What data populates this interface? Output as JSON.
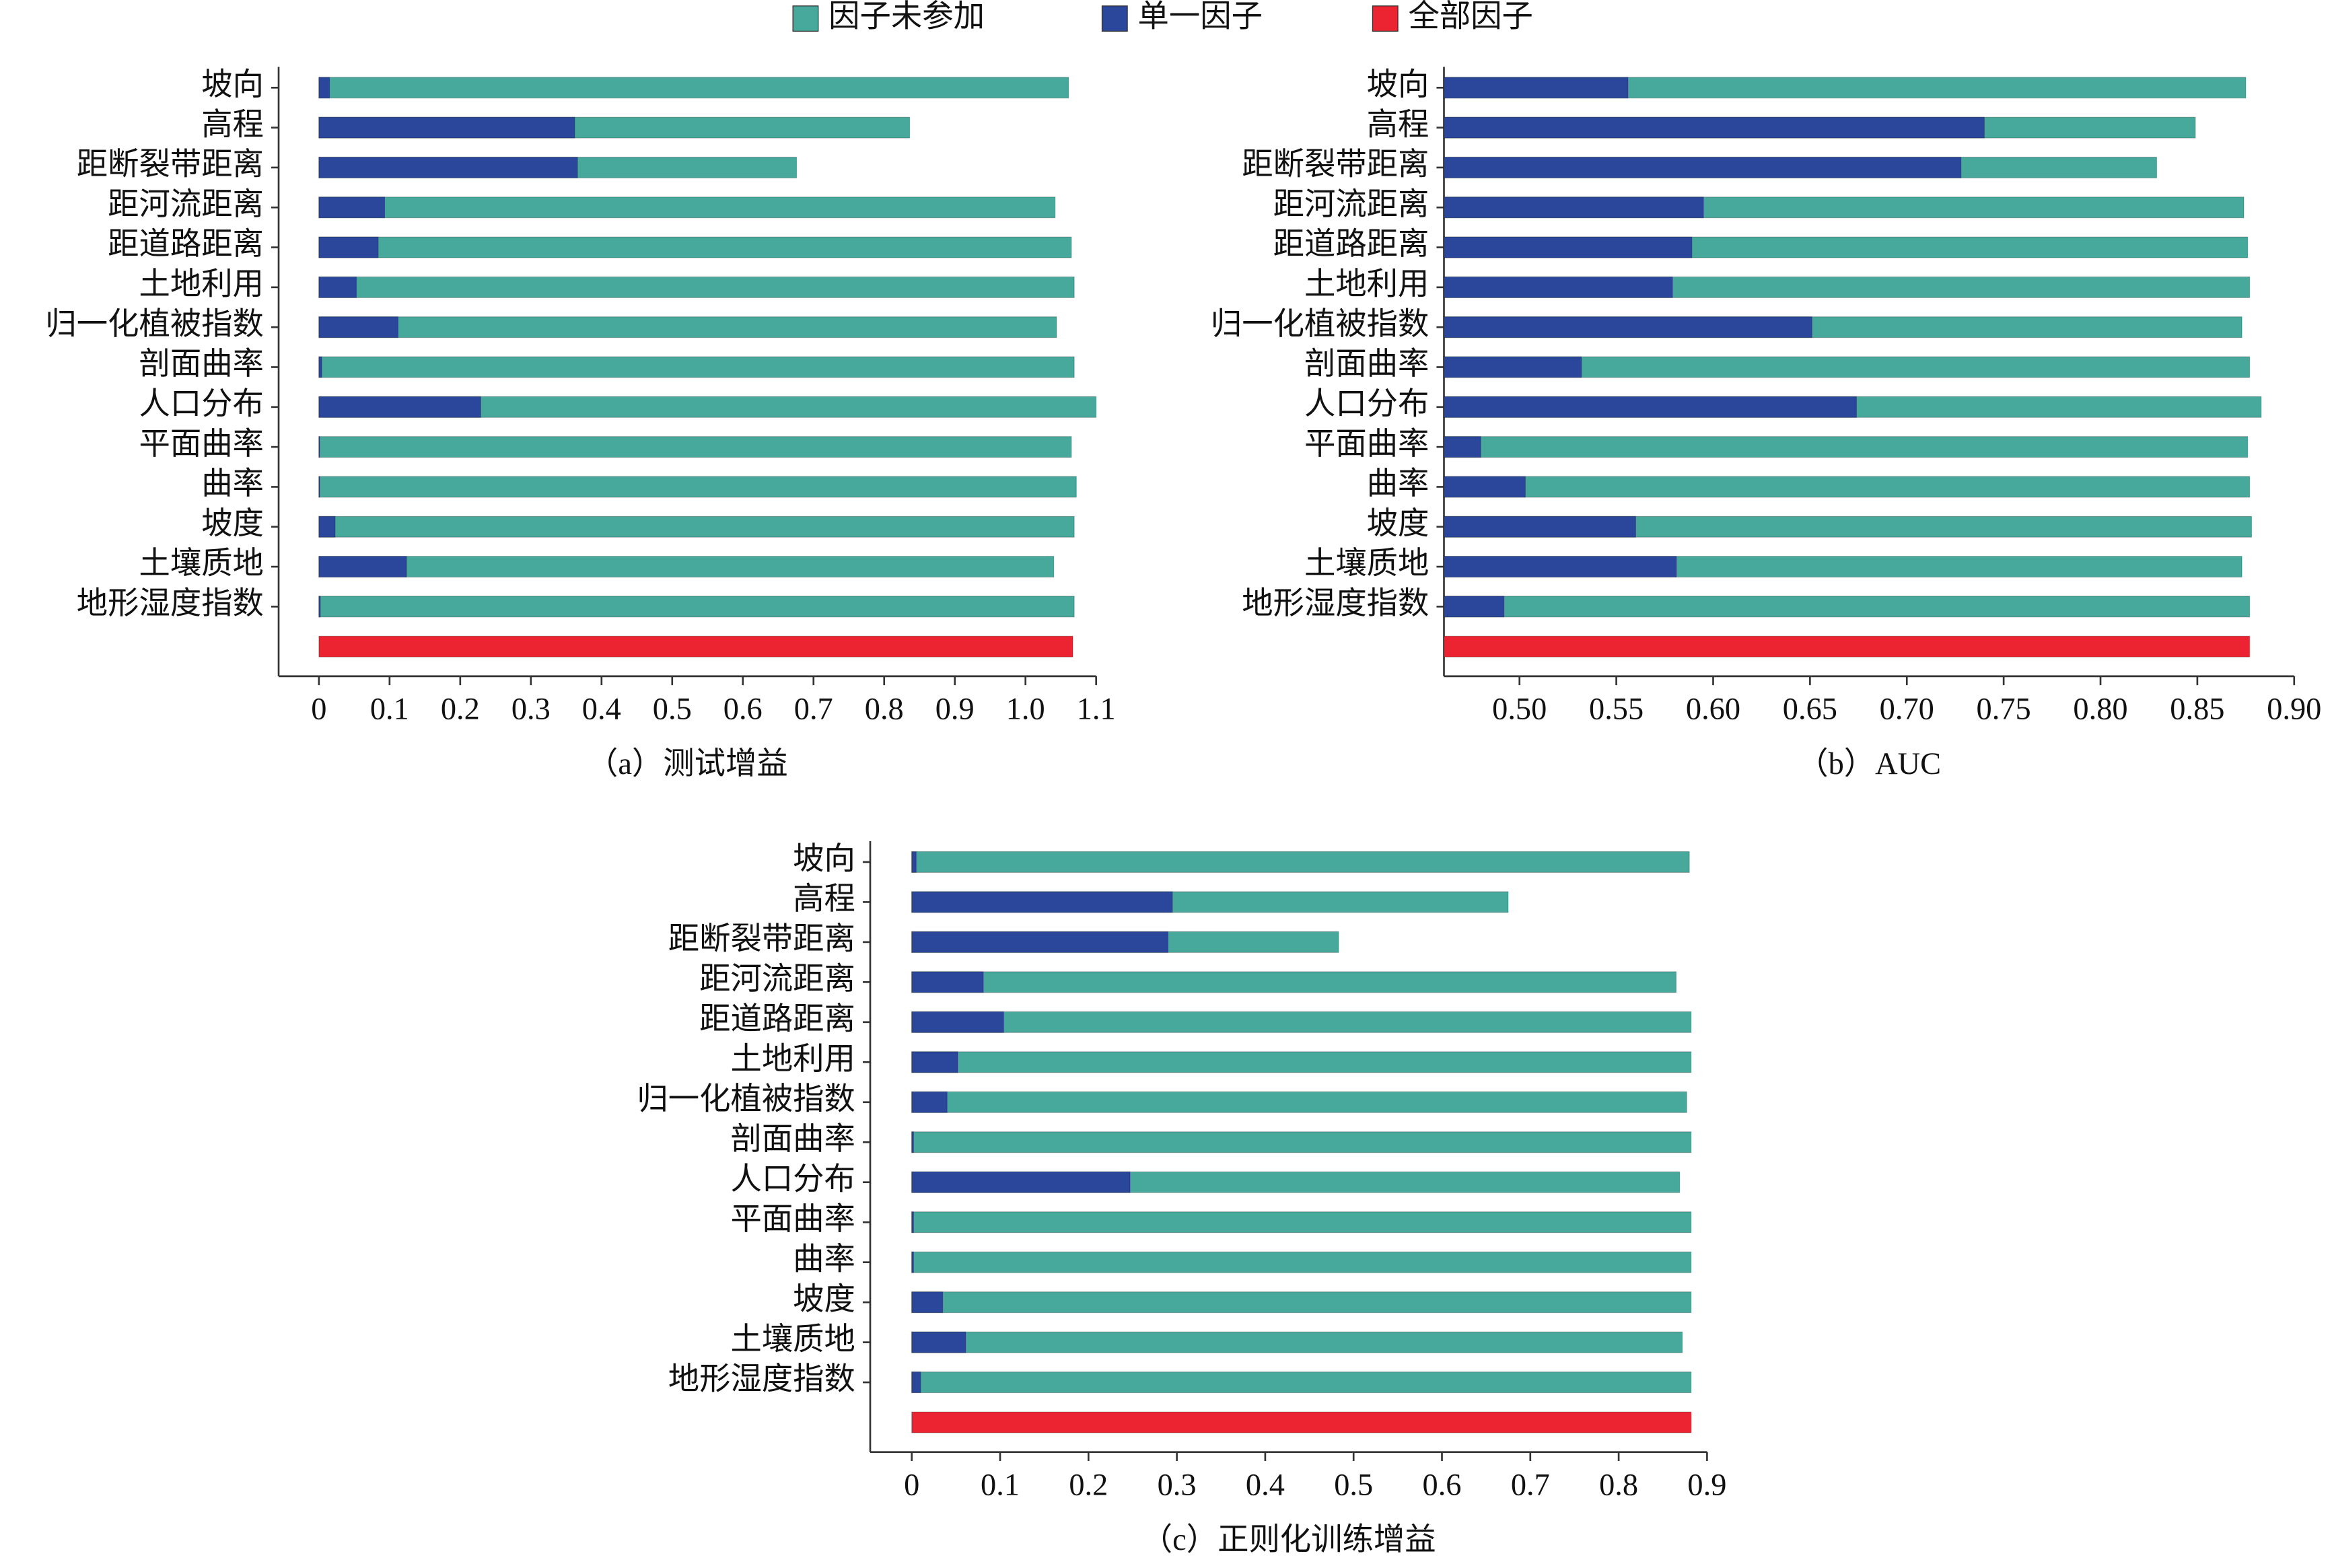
{
  "chart_data": [
    {
      "type": "bar",
      "orientation": "horizontal",
      "title": "（a）测试增益",
      "categories": [
        "坡向",
        "高程",
        "距断裂带距离",
        "距河流距离",
        "距道路距离",
        "土地利用",
        "归一化植被指数",
        "剖面曲率",
        "人口分布",
        "平面曲率",
        "曲率",
        "坡度",
        "土壤质地",
        "地形湿度指数",
        null
      ],
      "series": [
        {
          "name": "因子未参加",
          "color": "#46a99b",
          "values": [
            1.061,
            0.836,
            0.676,
            1.042,
            1.065,
            1.069,
            1.044,
            1.069,
            1.1,
            1.065,
            1.072,
            1.069,
            1.04,
            1.069,
            null
          ]
        },
        {
          "name": "单一因子",
          "color": "#2b479b",
          "values": [
            0.015,
            0.362,
            0.366,
            0.093,
            0.084,
            0.053,
            0.112,
            0.004,
            0.229,
            0.001,
            0.001,
            0.023,
            0.124,
            0.002,
            null
          ]
        },
        {
          "name": "全部因子",
          "color": "#ec2431",
          "values": [
            null,
            null,
            null,
            null,
            null,
            null,
            null,
            null,
            null,
            null,
            null,
            null,
            null,
            null,
            1.067
          ]
        }
      ],
      "xlim": [
        -0.057,
        1.1
      ],
      "xticks": [
        0,
        0.1,
        0.2,
        0.3,
        0.4,
        0.5,
        0.6,
        0.7,
        0.8,
        0.9,
        {
          "value": 1,
          "label": "1.0"
        },
        1.1
      ]
    },
    {
      "type": "bar",
      "orientation": "horizontal",
      "title": "（b）AUC",
      "categories": [
        "坡向",
        "高程",
        "距断裂带距离",
        "距河流距离",
        "距道路距离",
        "土地利用",
        "归一化植被指数",
        "剖面曲率",
        "人口分布",
        "平面曲率",
        "曲率",
        "坡度",
        "土壤质地",
        "地形湿度指数",
        null
      ],
      "series": [
        {
          "color": "#46a99b",
          "values": [
            0.875,
            0.849,
            0.829,
            0.874,
            0.876,
            0.877,
            0.873,
            0.877,
            0.883,
            0.876,
            0.877,
            0.878,
            0.873,
            0.877,
            null
          ]
        },
        {
          "color": "#2b479b",
          "values": [
            0.556,
            0.74,
            0.728,
            0.595,
            0.589,
            0.579,
            0.651,
            0.532,
            0.674,
            0.48,
            0.503,
            0.56,
            0.581,
            0.492,
            null
          ]
        },
        {
          "color": "#ec2431",
          "values": [
            null,
            null,
            null,
            null,
            null,
            null,
            null,
            null,
            null,
            null,
            null,
            null,
            null,
            null,
            0.877
          ]
        }
      ],
      "xlim": [
        0.461,
        0.9
      ],
      "xticks": [
        {
          "value": 0.5,
          "label": "0.50"
        },
        0.55,
        {
          "value": 0.6,
          "label": "0.60"
        },
        0.65,
        {
          "value": 0.7,
          "label": "0.70"
        },
        0.75,
        {
          "value": 0.8,
          "label": "0.80"
        },
        0.85,
        {
          "value": 0.9,
          "label": "0.90"
        }
      ]
    },
    {
      "type": "bar",
      "orientation": "horizontal",
      "title": "（c）正则化训练增益",
      "categories": [
        "坡向",
        "高程",
        "距断裂带距离",
        "距河流距离",
        "距道路距离",
        "土地利用",
        "归一化植被指数",
        "剖面曲率",
        "人口分布",
        "平面曲率",
        "曲率",
        "坡度",
        "土壤质地",
        "地形湿度指数",
        null
      ],
      "series": [
        {
          "color": "#46a99b",
          "values": [
            0.88,
            0.675,
            0.483,
            0.865,
            0.882,
            0.882,
            0.877,
            0.882,
            0.869,
            0.882,
            0.882,
            0.882,
            0.872,
            0.882,
            null
          ]
        },
        {
          "color": "#2b479b",
          "values": [
            0.005,
            0.295,
            0.29,
            0.081,
            0.104,
            0.052,
            0.04,
            0.002,
            0.247,
            0.002,
            0.002,
            0.035,
            0.061,
            0.01,
            null
          ]
        },
        {
          "color": "#ec2431",
          "values": [
            null,
            null,
            null,
            null,
            null,
            null,
            null,
            null,
            null,
            null,
            null,
            null,
            null,
            null,
            0.882
          ]
        }
      ],
      "xlim": [
        -0.047,
        0.9
      ],
      "xticks": [
        0,
        0.1,
        0.2,
        0.3,
        0.4,
        0.5,
        0.6,
        0.7,
        0.8,
        0.9
      ]
    }
  ]
}
